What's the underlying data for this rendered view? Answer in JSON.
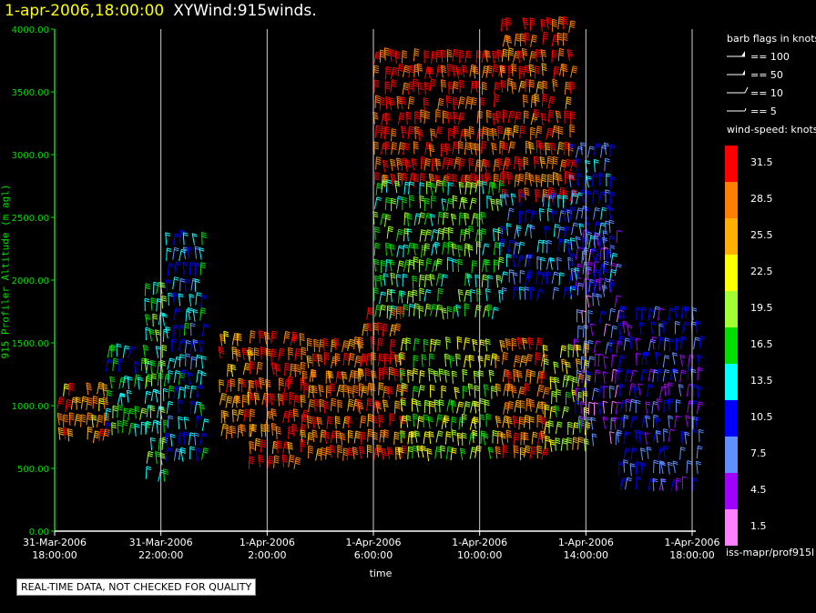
{
  "header": {
    "timestamp": "1-apr-2006,18:00:00",
    "title": "XYWind:915winds."
  },
  "legend": {
    "barb_title": "barb flags in knots",
    "barbs": [
      "== 100",
      "== 50",
      "== 10",
      "== 5"
    ],
    "speed_title": "wind-speed: knots",
    "speed_bins": [
      {
        "label": "31.5",
        "color": "#ff0000"
      },
      {
        "label": "28.5",
        "color": "#ff8000"
      },
      {
        "label": "25.5",
        "color": "#ffb000"
      },
      {
        "label": "22.5",
        "color": "#ffff00"
      },
      {
        "label": "19.5",
        "color": "#a0ff30"
      },
      {
        "label": "16.5",
        "color": "#00e000"
      },
      {
        "label": "13.5",
        "color": "#00ffff"
      },
      {
        "label": "10.5",
        "color": "#0000ff"
      },
      {
        "label": "7.5",
        "color": "#6090ff"
      },
      {
        "label": "4.5",
        "color": "#a000ff"
      },
      {
        "label": "1.5",
        "color": "#ff80ff"
      }
    ],
    "source_id": "iss-mapr/prof915l"
  },
  "footer": {
    "warning": "REAL-TIME DATA, NOT CHECKED FOR QUALITY"
  },
  "chart_data": {
    "type": "scatter",
    "title": "XYWind:915winds.",
    "xlabel": "time",
    "ylabel": "915 Profiler Altitude (m agl)",
    "ylim": [
      0,
      4000
    ],
    "xlim_hours": [
      0,
      24
    ],
    "y_ticks": [
      "0.00",
      "500.00",
      "1000.00",
      "1500.00",
      "2000.00",
      "2500.00",
      "3000.00",
      "3500.00",
      "4000.00"
    ],
    "x_ticks": [
      {
        "line1": "31-Mar-2006",
        "line2": "18:00:00"
      },
      {
        "line1": "31-Mar-2006",
        "line2": "22:00:00"
      },
      {
        "line1": "1-Apr-2006",
        "line2": "2:00:00"
      },
      {
        "line1": "1-Apr-2006",
        "line2": "6:00:00"
      },
      {
        "line1": "1-Apr-2006",
        "line2": "10:00:00"
      },
      {
        "line1": "1-Apr-2006",
        "line2": "14:00:00"
      },
      {
        "line1": "1-Apr-2006",
        "line2": "18:00:00"
      }
    ],
    "grid": "vertical",
    "segments": [
      {
        "t0": 0.1,
        "t1": 1.9,
        "z0": 650,
        "z1": 1100,
        "speed": 27
      },
      {
        "t0": 1.9,
        "t1": 3.4,
        "z0": 700,
        "z1": 1400,
        "speed": 15
      },
      {
        "t0": 3.4,
        "t1": 4.2,
        "z0": 400,
        "z1": 1900,
        "speed": 16
      },
      {
        "t0": 4.2,
        "t1": 5.5,
        "z0": 550,
        "z1": 2300,
        "speed": 12
      },
      {
        "t0": 6.2,
        "t1": 7.3,
        "z0": 700,
        "z1": 1500,
        "speed": 27
      },
      {
        "t0": 7.3,
        "t1": 9.3,
        "z0": 400,
        "z1": 1500,
        "speed": 30
      },
      {
        "t0": 9.3,
        "t1": 11.5,
        "z0": 500,
        "z1": 1450,
        "speed": 29
      },
      {
        "t0": 11.5,
        "t1": 13.0,
        "z0": 550,
        "z1": 1700,
        "speed": 30
      },
      {
        "t0": 13.0,
        "t1": 16.6,
        "z0": 550,
        "z1": 1450,
        "speed": 20
      },
      {
        "t0": 16.6,
        "t1": 18.4,
        "z0": 500,
        "z1": 1450,
        "speed": 28
      },
      {
        "t0": 18.4,
        "t1": 20.0,
        "z0": 550,
        "z1": 1400,
        "speed": 21
      },
      {
        "t0": 19.6,
        "t1": 21.2,
        "z0": 600,
        "z1": 2300,
        "speed": 6
      },
      {
        "t0": 21.2,
        "t1": 24.3,
        "z0": 300,
        "z1": 1700,
        "speed": 8
      },
      {
        "t0": 12.0,
        "t1": 16.8,
        "z0": 2700,
        "z1": 3750,
        "speed": 31
      },
      {
        "t0": 12.0,
        "t1": 16.8,
        "z0": 1700,
        "z1": 2700,
        "speed": 17
      },
      {
        "t0": 16.8,
        "t1": 19.4,
        "z0": 2600,
        "z1": 4000,
        "speed": 30
      },
      {
        "t0": 16.8,
        "t1": 19.4,
        "z0": 1800,
        "z1": 2600,
        "speed": 11
      },
      {
        "t0": 19.4,
        "t1": 21.0,
        "z0": 1800,
        "z1": 3000,
        "speed": 10
      }
    ]
  }
}
